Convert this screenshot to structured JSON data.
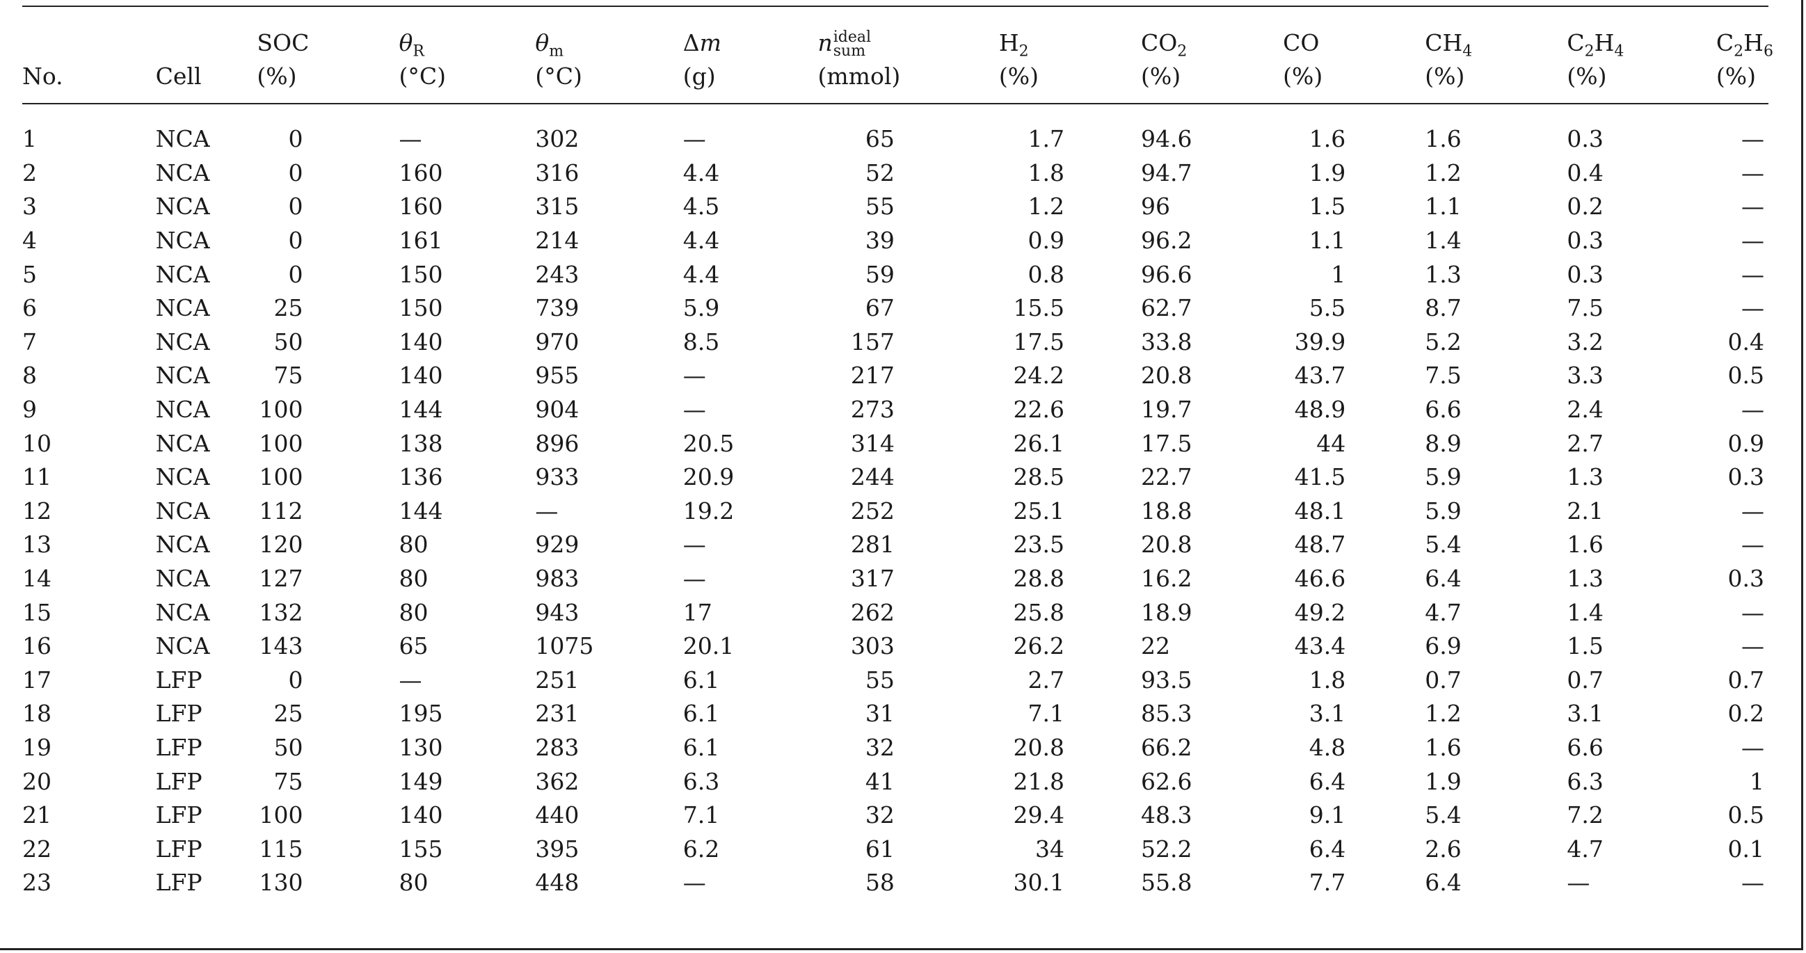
{
  "table": {
    "columns": [
      {
        "key": "no",
        "name": "No.",
        "unit": ""
      },
      {
        "key": "cell",
        "name": "Cell",
        "unit": ""
      },
      {
        "key": "soc",
        "name": "SOC",
        "unit": "(%)"
      },
      {
        "key": "theta_r",
        "name": "θR",
        "unit": "(°C)"
      },
      {
        "key": "theta_m",
        "name": "θm",
        "unit": "(°C)"
      },
      {
        "key": "delta_m",
        "name": "Δm",
        "unit": "(g)"
      },
      {
        "key": "n_ideal",
        "name": "n ideal sum",
        "unit": "(mmol)"
      },
      {
        "key": "h2",
        "name": "H2",
        "unit": "(%)"
      },
      {
        "key": "co2",
        "name": "CO2",
        "unit": "(%)"
      },
      {
        "key": "co",
        "name": "CO",
        "unit": "(%)"
      },
      {
        "key": "ch4",
        "name": "CH4",
        "unit": "(%)"
      },
      {
        "key": "c2h4",
        "name": "C2H4",
        "unit": "(%)"
      },
      {
        "key": "c2h6",
        "name": "C2H6",
        "unit": "(%)"
      }
    ],
    "rows": [
      [
        "1",
        "NCA",
        "0",
        "—",
        "302",
        "—",
        "65",
        "1.7",
        "94.6",
        "1.6",
        "1.6",
        "0.3",
        "—"
      ],
      [
        "2",
        "NCA",
        "0",
        "160",
        "316",
        "4.4",
        "52",
        "1.8",
        "94.7",
        "1.9",
        "1.2",
        "0.4",
        "—"
      ],
      [
        "3",
        "NCA",
        "0",
        "160",
        "315",
        "4.5",
        "55",
        "1.2",
        "96",
        "1.5",
        "1.1",
        "0.2",
        "—"
      ],
      [
        "4",
        "NCA",
        "0",
        "161",
        "214",
        "4.4",
        "39",
        "0.9",
        "96.2",
        "1.1",
        "1.4",
        "0.3",
        "—"
      ],
      [
        "5",
        "NCA",
        "0",
        "150",
        "243",
        "4.4",
        "59",
        "0.8",
        "96.6",
        "1",
        "1.3",
        "0.3",
        "—"
      ],
      [
        "6",
        "NCA",
        "25",
        "150",
        "739",
        "5.9",
        "67",
        "15.5",
        "62.7",
        "5.5",
        "8.7",
        "7.5",
        "—"
      ],
      [
        "7",
        "NCA",
        "50",
        "140",
        "970",
        "8.5",
        "157",
        "17.5",
        "33.8",
        "39.9",
        "5.2",
        "3.2",
        "0.4"
      ],
      [
        "8",
        "NCA",
        "75",
        "140",
        "955",
        "—",
        "217",
        "24.2",
        "20.8",
        "43.7",
        "7.5",
        "3.3",
        "0.5"
      ],
      [
        "9",
        "NCA",
        "100",
        "144",
        "904",
        "—",
        "273",
        "22.6",
        "19.7",
        "48.9",
        "6.6",
        "2.4",
        "—"
      ],
      [
        "10",
        "NCA",
        "100",
        "138",
        "896",
        "20.5",
        "314",
        "26.1",
        "17.5",
        "44",
        "8.9",
        "2.7",
        "0.9"
      ],
      [
        "11",
        "NCA",
        "100",
        "136",
        "933",
        "20.9",
        "244",
        "28.5",
        "22.7",
        "41.5",
        "5.9",
        "1.3",
        "0.3"
      ],
      [
        "12",
        "NCA",
        "112",
        "144",
        "—",
        "19.2",
        "252",
        "25.1",
        "18.8",
        "48.1",
        "5.9",
        "2.1",
        "—"
      ],
      [
        "13",
        "NCA",
        "120",
        "80",
        "929",
        "—",
        "281",
        "23.5",
        "20.8",
        "48.7",
        "5.4",
        "1.6",
        "—"
      ],
      [
        "14",
        "NCA",
        "127",
        "80",
        "983",
        "—",
        "317",
        "28.8",
        "16.2",
        "46.6",
        "6.4",
        "1.3",
        "0.3"
      ],
      [
        "15",
        "NCA",
        "132",
        "80",
        "943",
        "17",
        "262",
        "25.8",
        "18.9",
        "49.2",
        "4.7",
        "1.4",
        "—"
      ],
      [
        "16",
        "NCA",
        "143",
        "65",
        "1075",
        "20.1",
        "303",
        "26.2",
        "22",
        "43.4",
        "6.9",
        "1.5",
        "—"
      ],
      [
        "17",
        "LFP",
        "0",
        "—",
        "251",
        "6.1",
        "55",
        "2.7",
        "93.5",
        "1.8",
        "0.7",
        "0.7",
        "0.7"
      ],
      [
        "18",
        "LFP",
        "25",
        "195",
        "231",
        "6.1",
        "31",
        "7.1",
        "85.3",
        "3.1",
        "1.2",
        "3.1",
        "0.2"
      ],
      [
        "19",
        "LFP",
        "50",
        "130",
        "283",
        "6.1",
        "32",
        "20.8",
        "66.2",
        "4.8",
        "1.6",
        "6.6",
        "—"
      ],
      [
        "20",
        "LFP",
        "75",
        "149",
        "362",
        "6.3",
        "41",
        "21.8",
        "62.6",
        "6.4",
        "1.9",
        "6.3",
        "1"
      ],
      [
        "21",
        "LFP",
        "100",
        "140",
        "440",
        "7.1",
        "32",
        "29.4",
        "48.3",
        "9.1",
        "5.4",
        "7.2",
        "0.5"
      ],
      [
        "22",
        "LFP",
        "115",
        "155",
        "395",
        "6.2",
        "61",
        "34",
        "52.2",
        "6.4",
        "2.6",
        "4.7",
        "0.1"
      ],
      [
        "23",
        "LFP",
        "130",
        "80",
        "448",
        "—",
        "58",
        "30.1",
        "55.8",
        "7.7",
        "6.4",
        "—",
        "—"
      ]
    ]
  }
}
